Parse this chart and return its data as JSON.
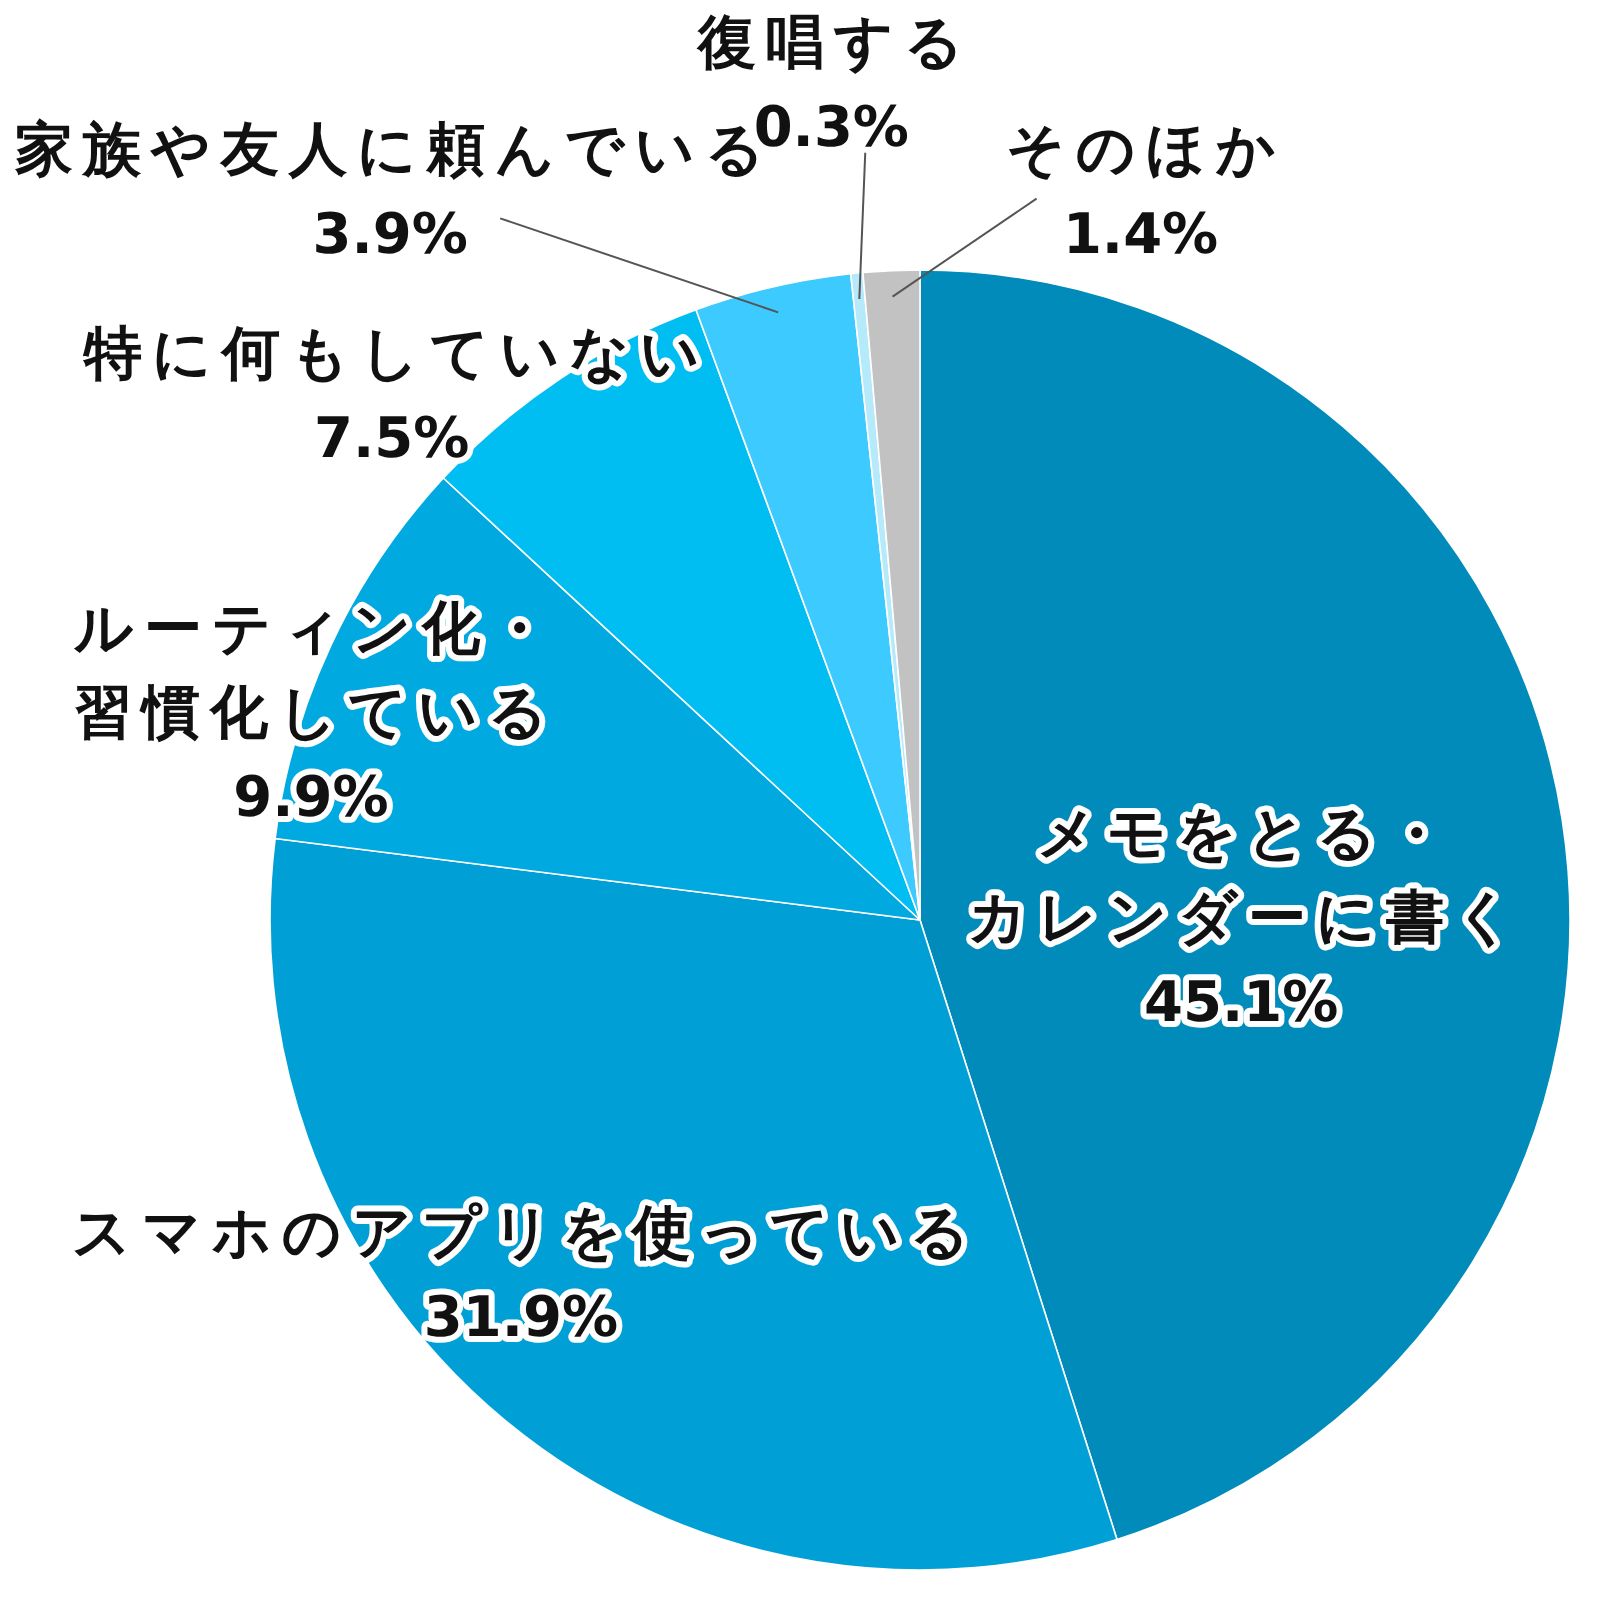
{
  "chart_data": {
    "type": "pie",
    "categories": [
      "メモをとる・カレンダーに書く",
      "スマホのアプリを使っている",
      "ルーティン化・習慣化している",
      "特に何もしていない",
      "家族や友人に頼んでいる",
      "復唱する",
      "そのほか"
    ],
    "values": [
      45.1,
      31.9,
      9.9,
      7.5,
      3.9,
      0.3,
      1.4
    ],
    "value_labels": [
      "45.1%",
      "31.9%",
      "9.9%",
      "7.5%",
      "3.9%",
      "0.3%",
      "1.4%"
    ],
    "colors": [
      "#008bba",
      "#00a0d6",
      "#00a9e0",
      "#00bdf2",
      "#3ccaff",
      "#b5eafb",
      "#c2c2c2"
    ]
  }
}
